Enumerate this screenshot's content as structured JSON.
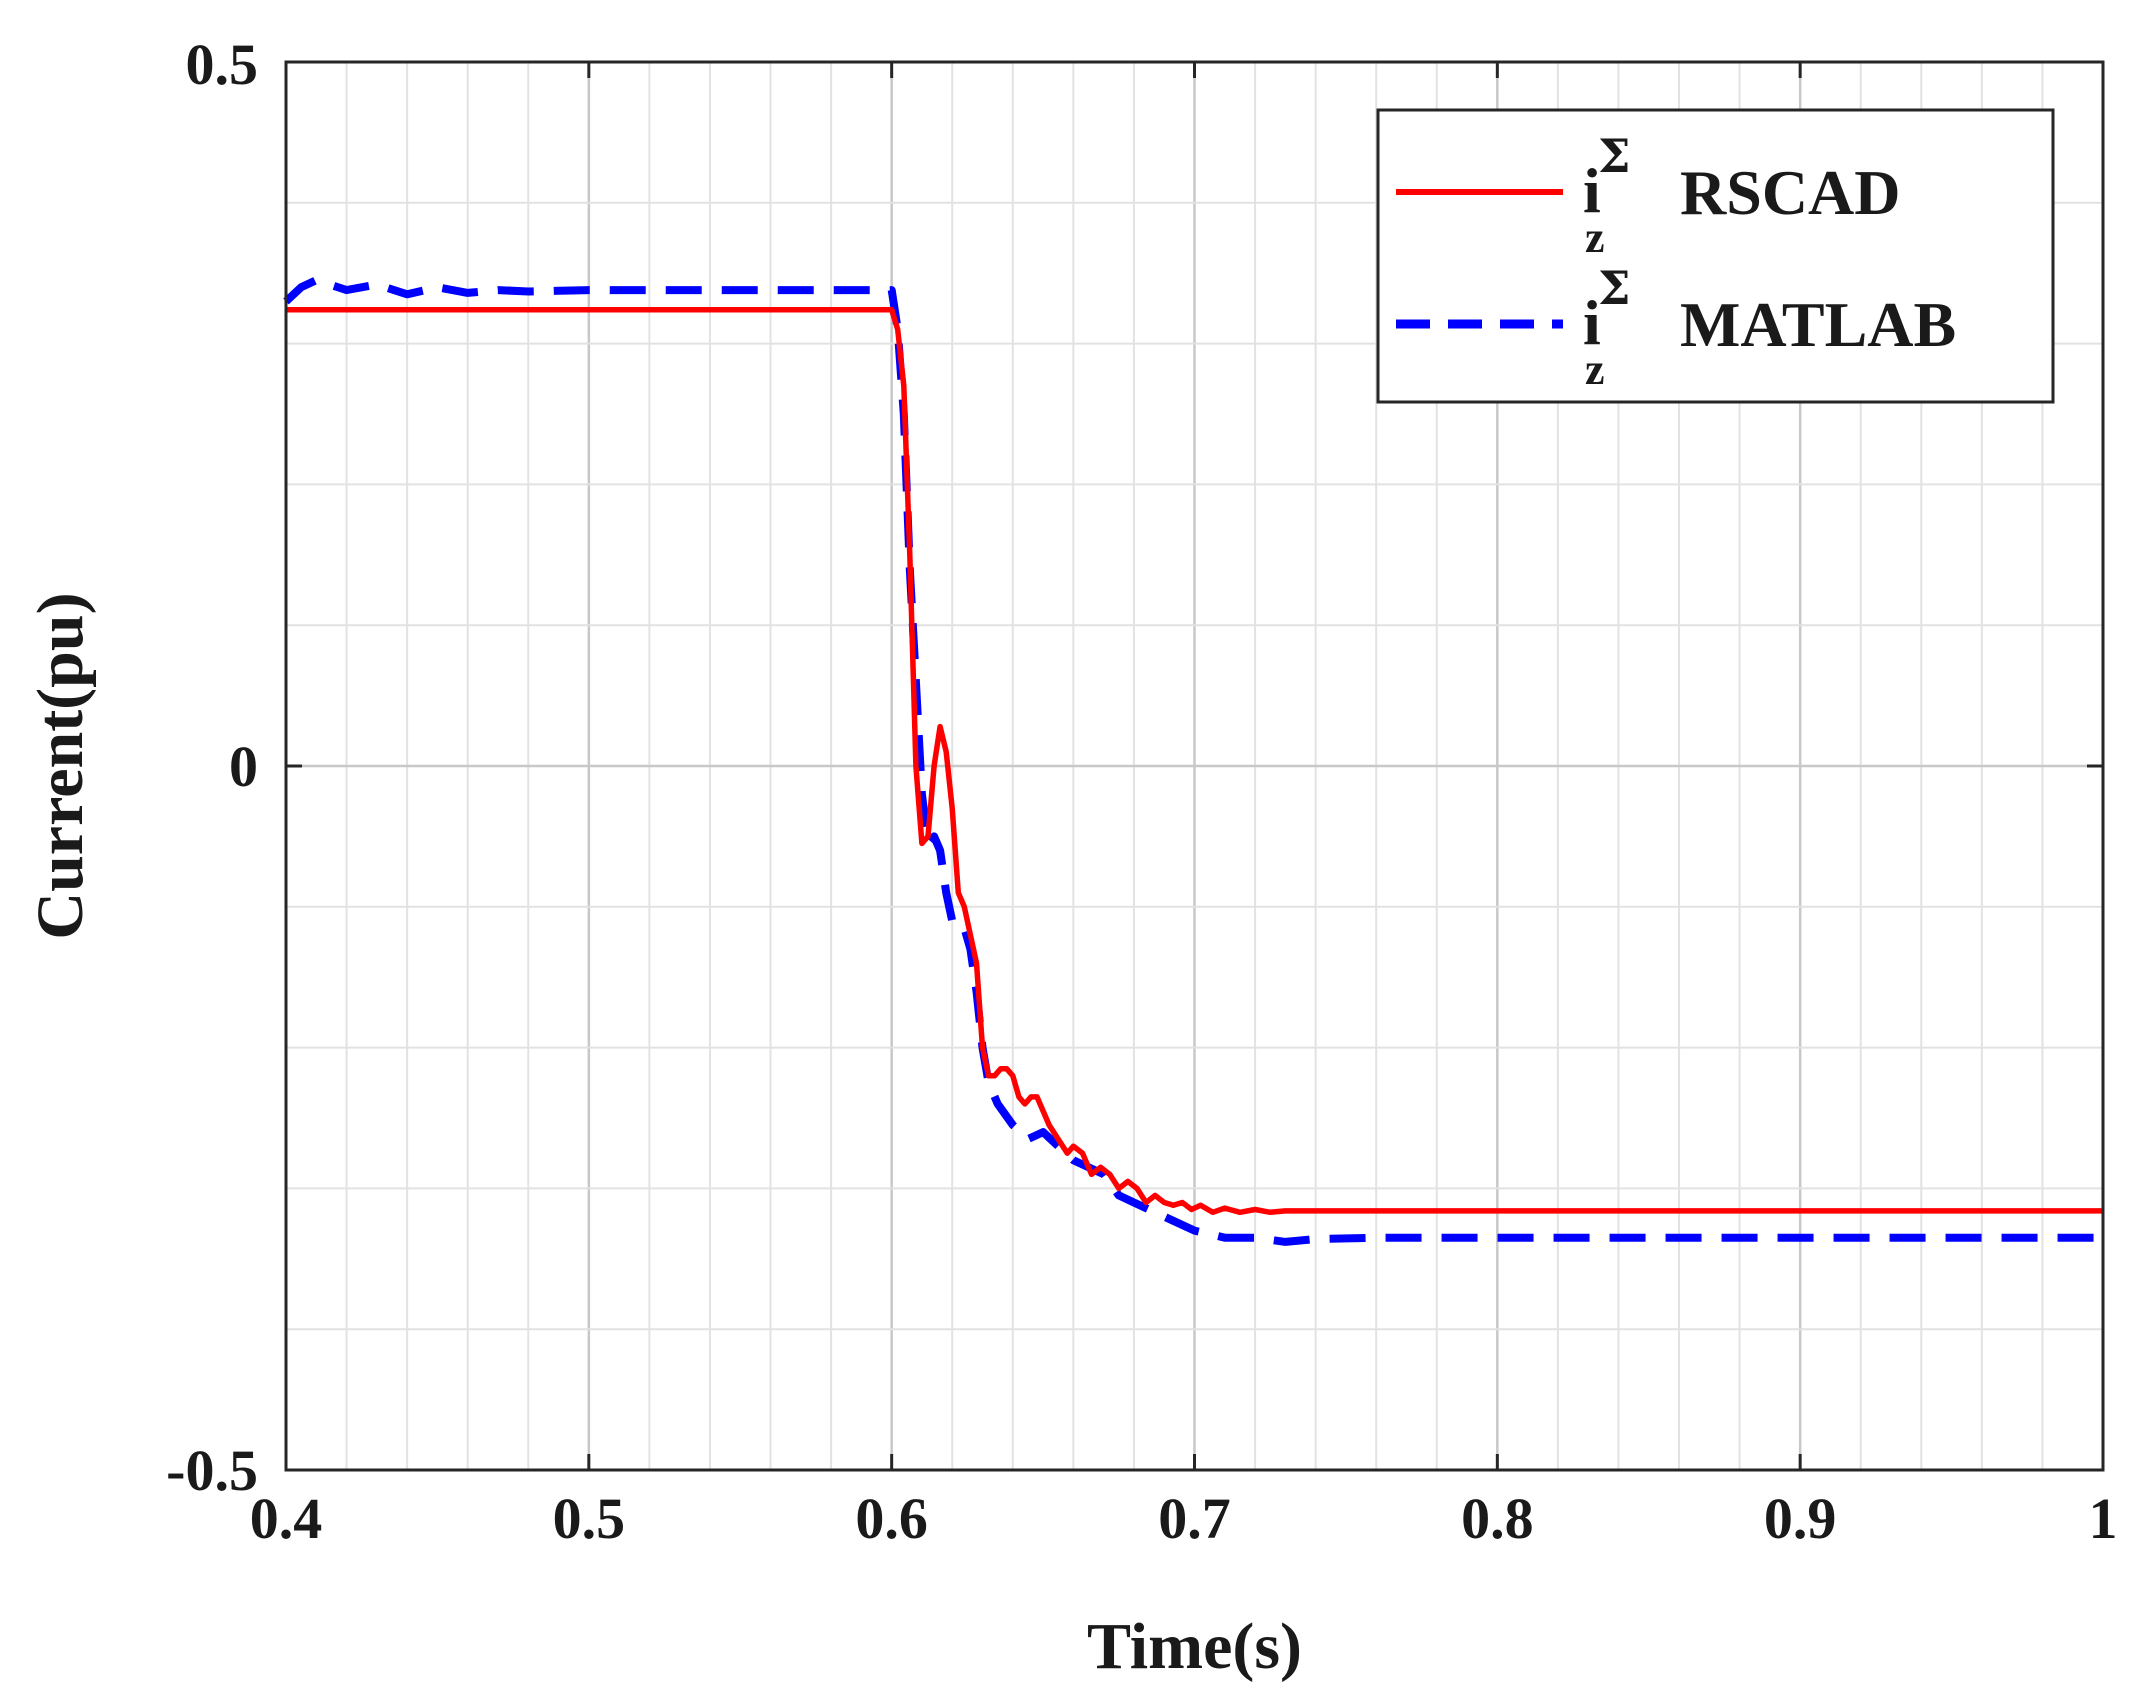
{
  "chart_data": {
    "type": "line",
    "title": "",
    "xlabel": "Time(s)",
    "ylabel": "Current(pu)",
    "xlim": [
      0.4,
      1.0
    ],
    "ylim": [
      -0.5,
      0.5
    ],
    "xticks": [
      0.4,
      0.5,
      0.6,
      0.7,
      0.8,
      0.9,
      1.0
    ],
    "xtick_labels": [
      "0.4",
      "0.5",
      "0.6",
      "0.7",
      "0.8",
      "0.9",
      "1"
    ],
    "yticks": [
      -0.5,
      0,
      0.5
    ],
    "ytick_labels": [
      "-0.5",
      "0",
      "0.5"
    ],
    "grid": true,
    "minor_grid": true,
    "legend_position": "top-right",
    "series": [
      {
        "name": "RSCAD",
        "legend_symbol": "i",
        "legend_superscript": "Σ",
        "legend_subscript": "z",
        "legend_text": "RSCAD",
        "color": "#ff0000",
        "style": "solid",
        "x": [
          0.4,
          0.45,
          0.5,
          0.55,
          0.6,
          0.602,
          0.604,
          0.606,
          0.608,
          0.61,
          0.612,
          0.614,
          0.616,
          0.618,
          0.62,
          0.622,
          0.624,
          0.626,
          0.628,
          0.63,
          0.632,
          0.634,
          0.636,
          0.638,
          0.64,
          0.642,
          0.644,
          0.646,
          0.648,
          0.65,
          0.652,
          0.655,
          0.658,
          0.66,
          0.663,
          0.666,
          0.669,
          0.672,
          0.675,
          0.678,
          0.681,
          0.684,
          0.687,
          0.69,
          0.693,
          0.696,
          0.699,
          0.702,
          0.706,
          0.71,
          0.715,
          0.72,
          0.725,
          0.73,
          0.74,
          0.75,
          0.8,
          0.85,
          0.9,
          0.95,
          1.0
        ],
        "values": [
          0.324,
          0.324,
          0.324,
          0.324,
          0.324,
          0.31,
          0.27,
          0.15,
          0.0,
          -0.055,
          -0.05,
          0.0,
          0.028,
          0.01,
          -0.03,
          -0.09,
          -0.1,
          -0.12,
          -0.14,
          -0.2,
          -0.22,
          -0.22,
          -0.215,
          -0.215,
          -0.22,
          -0.235,
          -0.24,
          -0.235,
          -0.235,
          -0.245,
          -0.255,
          -0.265,
          -0.275,
          -0.27,
          -0.275,
          -0.29,
          -0.285,
          -0.29,
          -0.3,
          -0.295,
          -0.3,
          -0.31,
          -0.305,
          -0.31,
          -0.312,
          -0.31,
          -0.315,
          -0.312,
          -0.317,
          -0.314,
          -0.317,
          -0.315,
          -0.317,
          -0.316,
          -0.316,
          -0.316,
          -0.316,
          -0.316,
          -0.316,
          -0.316,
          -0.316
        ]
      },
      {
        "name": "MATLAB",
        "legend_symbol": "i",
        "legend_superscript": "Σ",
        "legend_subscript": "z",
        "legend_text": "MATLAB",
        "color": "#0000ff",
        "style": "dashed",
        "x": [
          0.4,
          0.405,
          0.41,
          0.42,
          0.43,
          0.44,
          0.45,
          0.46,
          0.47,
          0.48,
          0.5,
          0.55,
          0.6,
          0.602,
          0.604,
          0.606,
          0.608,
          0.61,
          0.612,
          0.614,
          0.616,
          0.618,
          0.62,
          0.622,
          0.624,
          0.626,
          0.628,
          0.63,
          0.632,
          0.635,
          0.64,
          0.645,
          0.65,
          0.655,
          0.66,
          0.665,
          0.67,
          0.675,
          0.68,
          0.69,
          0.7,
          0.71,
          0.72,
          0.73,
          0.74,
          0.76,
          0.8,
          0.85,
          0.9,
          0.95,
          1.0
        ],
        "values": [
          0.33,
          0.34,
          0.345,
          0.338,
          0.342,
          0.335,
          0.34,
          0.336,
          0.338,
          0.337,
          0.338,
          0.338,
          0.338,
          0.31,
          0.25,
          0.14,
          0.06,
          -0.02,
          -0.055,
          -0.05,
          -0.06,
          -0.09,
          -0.11,
          -0.11,
          -0.115,
          -0.13,
          -0.16,
          -0.2,
          -0.225,
          -0.24,
          -0.255,
          -0.265,
          -0.26,
          -0.27,
          -0.28,
          -0.285,
          -0.29,
          -0.305,
          -0.31,
          -0.32,
          -0.33,
          -0.335,
          -0.335,
          -0.338,
          -0.336,
          -0.335,
          -0.335,
          -0.335,
          -0.335,
          -0.335,
          -0.335
        ]
      }
    ]
  }
}
